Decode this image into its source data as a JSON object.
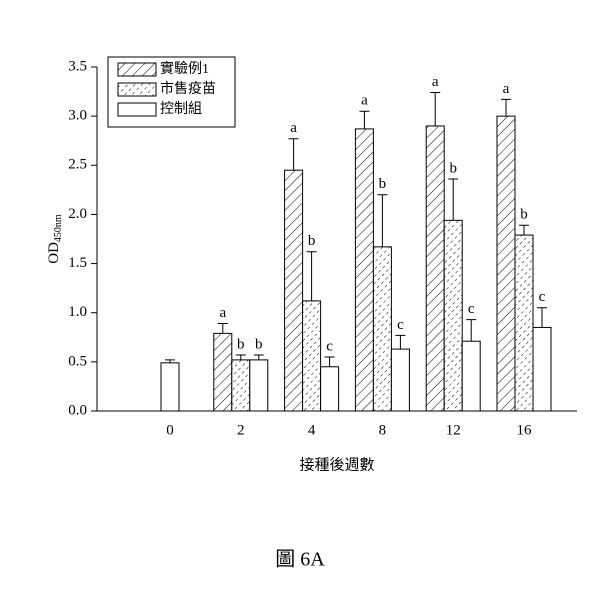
{
  "chart_data": {
    "type": "bar",
    "y_label": "OD",
    "y_label_sub": "450nm",
    "x_label": "接種後週數",
    "caption": "圖 6A",
    "categories": [
      "0",
      "2",
      "4",
      "8",
      "12",
      "16"
    ],
    "series": [
      {
        "name": "實驗例1",
        "color": "#000000",
        "pattern": "diagonal",
        "values": [
          null,
          0.79,
          2.45,
          2.87,
          2.9,
          3.0
        ],
        "errors": [
          null,
          0.1,
          0.32,
          0.18,
          0.34,
          0.17
        ],
        "letters": [
          null,
          "a",
          "a",
          "a",
          "a",
          "a"
        ]
      },
      {
        "name": "市售疫苗",
        "color": "#000000",
        "pattern": "dashed",
        "values": [
          null,
          0.52,
          1.12,
          1.67,
          1.94,
          1.79
        ],
        "errors": [
          null,
          0.05,
          0.5,
          0.53,
          0.42,
          0.1
        ],
        "letters": [
          null,
          "b",
          "b",
          "b",
          "b",
          "b"
        ]
      },
      {
        "name": "控制組",
        "color": "#000000",
        "pattern": "none",
        "values": [
          0.49,
          0.52,
          0.45,
          0.63,
          0.71,
          0.85
        ],
        "errors": [
          0.03,
          0.05,
          0.1,
          0.14,
          0.22,
          0.2
        ],
        "letters": [
          null,
          "b",
          "c",
          "c",
          "c",
          "c"
        ]
      }
    ],
    "ylim": [
      0,
      3.5
    ],
    "yticks": [
      {
        "value": 0,
        "label": "0.0"
      },
      {
        "value": 0.5,
        "label": "0.5"
      },
      {
        "value": 1,
        "label": "1.0"
      },
      {
        "value": 1.5,
        "label": "1.5"
      },
      {
        "value": 2,
        "label": "2.0"
      },
      {
        "value": 2.5,
        "label": "2.5"
      },
      {
        "value": 3,
        "label": "3.0"
      },
      {
        "value": 3.5,
        "label": "3.5"
      }
    ],
    "legend": "upper left"
  }
}
